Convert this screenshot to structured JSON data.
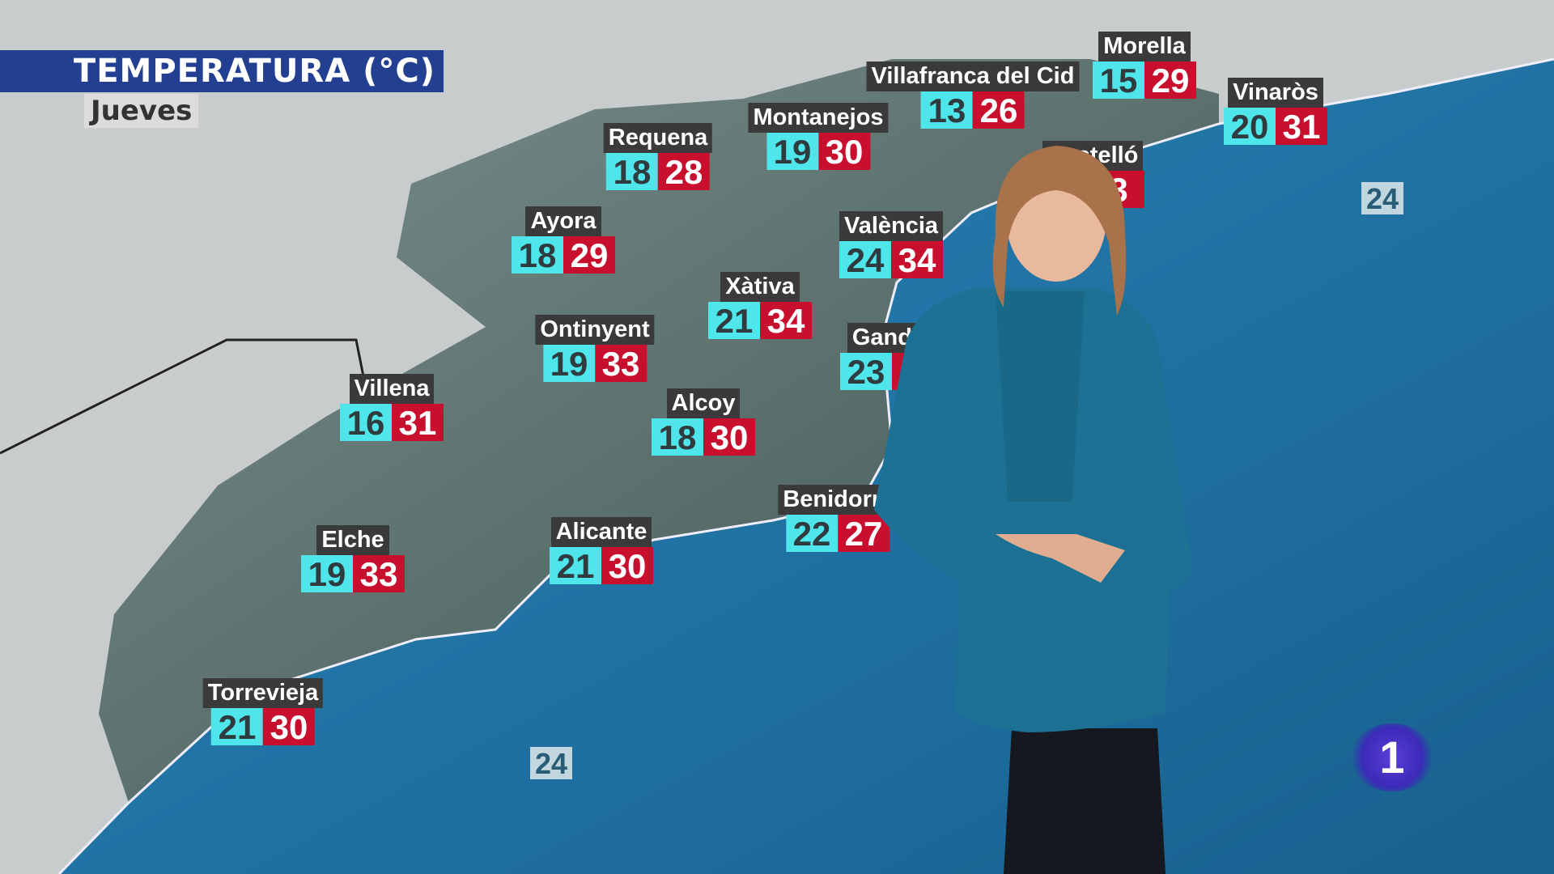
{
  "header": {
    "title": "TEMPERATURA (°C)",
    "day": "Jueves"
  },
  "colors": {
    "title_bar": "#233f92",
    "min_box": "#4ee6ea",
    "max_box": "#c8102e",
    "sea": "#1f6f9e",
    "land": "#c9cccc",
    "terrain": "#5d7370"
  },
  "stations": [
    {
      "name": "Morella",
      "min": "15",
      "max": "29"
    },
    {
      "name": "Villafranca del Cid",
      "min": "13",
      "max": "26"
    },
    {
      "name": "Vinaròs",
      "min": "20",
      "max": "31"
    },
    {
      "name": "Montanejos",
      "min": "19",
      "max": "30"
    },
    {
      "name": "Requena",
      "min": "18",
      "max": "28"
    },
    {
      "name": "Castelló",
      "min": "",
      "max": "3"
    },
    {
      "name": "Ayora",
      "min": "18",
      "max": "29"
    },
    {
      "name": "València",
      "min": "24",
      "max": "34"
    },
    {
      "name": "Xàtiva",
      "min": "21",
      "max": "34"
    },
    {
      "name": "Ontinyent",
      "min": "19",
      "max": "33"
    },
    {
      "name": "Gandia",
      "min": "23",
      "max": ""
    },
    {
      "name": "Villena",
      "min": "16",
      "max": "31"
    },
    {
      "name": "Alcoy",
      "min": "18",
      "max": "30"
    },
    {
      "name": "Benidorm",
      "min": "22",
      "max": "27"
    },
    {
      "name": "Elche",
      "min": "19",
      "max": "33"
    },
    {
      "name": "Alicante",
      "min": "21",
      "max": "30"
    },
    {
      "name": "Torrevieja",
      "min": "21",
      "max": "30"
    }
  ],
  "sea_temps": [
    "24",
    "24"
  ],
  "channel_logo": {
    "text": "1",
    "icon": "la1-logo"
  }
}
